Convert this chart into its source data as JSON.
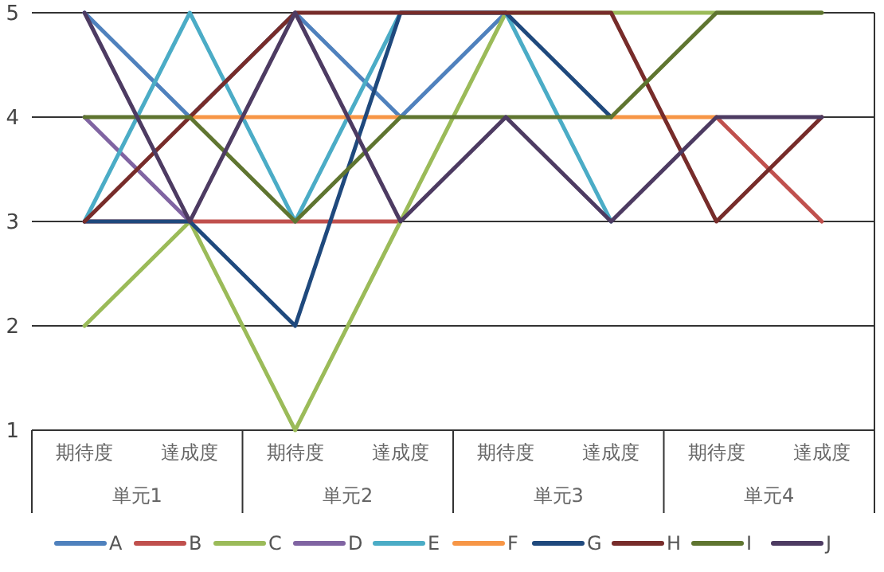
{
  "chart_data": {
    "type": "line",
    "categories": [
      "期待度",
      "達成度",
      "期待度",
      "達成度",
      "期待度",
      "達成度",
      "期待度",
      "達成度"
    ],
    "annotations": [
      "単元1",
      "単元2",
      "単元3",
      "単元4"
    ],
    "ylim": [
      1,
      5
    ],
    "yticks": [
      1,
      2,
      3,
      4,
      5
    ],
    "grid": "y",
    "legend": "bottom",
    "marker": "none",
    "line_style": "solid",
    "series": [
      {
        "name": "A",
        "color": "#4f81bd",
        "values": [
          5,
          4,
          5,
          4,
          5,
          null,
          null,
          null
        ]
      },
      {
        "name": "B",
        "color": "#c0504d",
        "values": [
          3,
          3,
          3,
          3,
          null,
          null,
          4,
          3
        ]
      },
      {
        "name": "C",
        "color": "#9bbb59",
        "values": [
          2,
          3,
          1,
          3,
          5,
          5,
          5,
          5
        ]
      },
      {
        "name": "D",
        "color": "#8064a2",
        "values": [
          4,
          3,
          null,
          null,
          null,
          null,
          null,
          null
        ]
      },
      {
        "name": "E",
        "color": "#4bacc6",
        "values": [
          3,
          5,
          3,
          5,
          5,
          3,
          null,
          null
        ]
      },
      {
        "name": "F",
        "color": "#f79646",
        "values": [
          null,
          4,
          4,
          4,
          null,
          4,
          4,
          null
        ]
      },
      {
        "name": "G",
        "color": "#1f497d",
        "values": [
          3,
          3,
          2,
          5,
          5,
          4,
          null,
          null
        ]
      },
      {
        "name": "H",
        "color": "#772c2a",
        "values": [
          3,
          4,
          5,
          5,
          5,
          5,
          3,
          4
        ]
      },
      {
        "name": "I",
        "color": "#5f7530",
        "values": [
          4,
          4,
          3,
          4,
          4,
          4,
          5,
          5
        ]
      },
      {
        "name": "J",
        "color": "#4d3b62",
        "values": [
          5,
          3,
          5,
          3,
          4,
          3,
          4,
          4
        ]
      }
    ]
  }
}
